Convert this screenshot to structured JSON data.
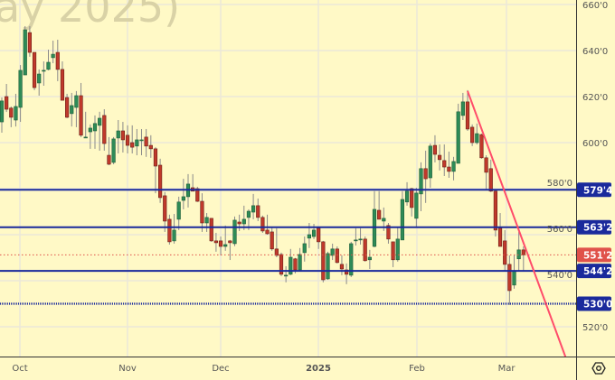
{
  "chart_data": {
    "type": "candlestick",
    "watermark": "ay 2025)",
    "ylim": [
      510,
      662
    ],
    "y_ticks": [
      "660'0",
      "640'0",
      "620'0",
      "600'0",
      "580'0",
      "560'0",
      "540'0",
      "520'0"
    ],
    "y_tick_values": [
      660,
      640,
      620,
      600,
      580,
      560,
      540,
      520
    ],
    "x_tick_labels": [
      "Oct",
      "Nov",
      "Dec",
      "2025",
      "Feb",
      "Mar"
    ],
    "grid": true,
    "colors": {
      "background": "#fff9c6",
      "up": "#2e8b57",
      "down": "#c0392b",
      "wick": "#8a8a8a",
      "level": "#1a2a9c",
      "current": "#e0524a",
      "trendline": "#ff4d6a",
      "grid": "#ece8d8"
    },
    "ohlc": [
      [
        609,
        619.6,
        604.3,
        618.1
      ],
      [
        620,
        625.5,
        613.3,
        614.5
      ],
      [
        615,
        615.7,
        606.7,
        611
      ],
      [
        609.8,
        621.2,
        607,
        615.7
      ],
      [
        615.3,
        633.7,
        609,
        631.4
      ],
      [
        629.4,
        650.6,
        629.4,
        649
      ],
      [
        647.8,
        650.6,
        637.3,
        639.2
      ],
      [
        639.2,
        639.2,
        622.8,
        623.9
      ],
      [
        625.9,
        631.8,
        620.4,
        629.8
      ],
      [
        631.4,
        635.3,
        624.7,
        631.4
      ],
      [
        631.8,
        640.4,
        631.4,
        634.9
      ],
      [
        636.9,
        644.3,
        634.5,
        638.4
      ],
      [
        639.2,
        644.7,
        626.7,
        631.8
      ],
      [
        631.8,
        635.3,
        618.4,
        618.4
      ],
      [
        619.6,
        621.2,
        610.6,
        611
      ],
      [
        612.6,
        621.6,
        607,
        616.1
      ],
      [
        615.3,
        622.4,
        606.7,
        620.4
      ],
      [
        620.4,
        625.9,
        602.4,
        603.2
      ],
      [
        602.4,
        613.4,
        602,
        602.4
      ],
      [
        604.7,
        607.9,
        597.3,
        606.3
      ],
      [
        605.1,
        611.8,
        597.3,
        608.3
      ],
      [
        607.5,
        613.4,
        596.5,
        610.6
      ],
      [
        611.8,
        614.5,
        596.5,
        599.6
      ],
      [
        594.5,
        602.4,
        590.2,
        590.6
      ],
      [
        591.4,
        602.4,
        590.6,
        601.6
      ],
      [
        602,
        609.8,
        595.3,
        605.1
      ],
      [
        605.1,
        609,
        595.7,
        601.2
      ],
      [
        603.2,
        607.5,
        595.3,
        598.8
      ],
      [
        600,
        607.5,
        595.3,
        598
      ],
      [
        598.5,
        605.9,
        594.5,
        601.2
      ],
      [
        601.2,
        605.9,
        594.5,
        601.2
      ],
      [
        602.4,
        605.9,
        593.8,
        598.5
      ],
      [
        598.8,
        603.2,
        593.4,
        597.3
      ],
      [
        597.3,
        598,
        578,
        589.8
      ],
      [
        590.2,
        593,
        573.8,
        576.1
      ],
      [
        576.9,
        578.5,
        561.2,
        565.9
      ],
      [
        566.7,
        568.7,
        555.7,
        556.9
      ],
      [
        557.3,
        569,
        556.1,
        562
      ],
      [
        566.7,
        576.5,
        562,
        574.2
      ],
      [
        574.9,
        584.3,
        571,
        576.5
      ],
      [
        576.5,
        586.3,
        571.8,
        582
      ],
      [
        580.4,
        586.3,
        578.9,
        578.9
      ],
      [
        580,
        580.8,
        574.2,
        574.5
      ],
      [
        574.5,
        578,
        561.2,
        565.1
      ],
      [
        565.1,
        569.4,
        561.2,
        567.5
      ],
      [
        567.1,
        567.1,
        556.9,
        557.3
      ],
      [
        557.3,
        560.8,
        552.6,
        556.5
      ],
      [
        557.3,
        559.2,
        551,
        554.9
      ],
      [
        554.9,
        564,
        553,
        555.7
      ],
      [
        557.3,
        557.7,
        549,
        556.5
      ],
      [
        556.1,
        567.9,
        555,
        566.3
      ],
      [
        565.5,
        568.7,
        561.6,
        564.7
      ],
      [
        564.7,
        572.6,
        562,
        566.7
      ],
      [
        567.5,
        571,
        562,
        570.2
      ],
      [
        569.8,
        577.7,
        566.7,
        572.6
      ],
      [
        572.6,
        575.7,
        565.9,
        567.5
      ],
      [
        567.5,
        568.3,
        560.8,
        561.6
      ],
      [
        562,
        568.7,
        560,
        560.4
      ],
      [
        561.2,
        563.2,
        553,
        553.8
      ],
      [
        553.8,
        562.8,
        550.2,
        551
      ],
      [
        551.4,
        552.2,
        542,
        542.8
      ],
      [
        542.4,
        546.3,
        539.3,
        542.4
      ],
      [
        542.8,
        553.8,
        542.4,
        550.2
      ],
      [
        549.5,
        549.9,
        543.2,
        544.7
      ],
      [
        544.7,
        554.2,
        544.3,
        551.4
      ],
      [
        552.2,
        559.2,
        548.3,
        556.1
      ],
      [
        558.5,
        565.1,
        554.2,
        560
      ],
      [
        559.2,
        564.7,
        558.1,
        562
      ],
      [
        562.8,
        563.2,
        553.8,
        556.9
      ],
      [
        556.9,
        557.3,
        539.3,
        540.4
      ],
      [
        540.8,
        552.6,
        540.4,
        551.8
      ],
      [
        551,
        556.1,
        549,
        553.8
      ],
      [
        553.8,
        554.9,
        547.5,
        547.9
      ],
      [
        547.1,
        551,
        542.4,
        545.1
      ],
      [
        544.7,
        547.5,
        538.5,
        542.8
      ],
      [
        542.4,
        556.9,
        541.6,
        556.1
      ],
      [
        557.7,
        562.8,
        555.3,
        557.7
      ],
      [
        558.1,
        562.8,
        555.7,
        558.1
      ],
      [
        558.1,
        559.2,
        548.3,
        548.7
      ],
      [
        549.1,
        553.4,
        545.1,
        550.2
      ],
      [
        554.9,
        578.9,
        554.5,
        571
      ],
      [
        570.6,
        578.9,
        566.7,
        566.7
      ],
      [
        565.9,
        571.8,
        561.6,
        567.1
      ],
      [
        564,
        565.1,
        556.1,
        558.1
      ],
      [
        556.9,
        556.9,
        545.9,
        549.1
      ],
      [
        549.1,
        563.2,
        548.3,
        558.1
      ],
      [
        557.7,
        578.9,
        557.7,
        575.3
      ],
      [
        574.2,
        582.8,
        572.6,
        578.9
      ],
      [
        580,
        580.4,
        567.9,
        571.8
      ],
      [
        567.1,
        580.4,
        563.2,
        578.1
      ],
      [
        577.7,
        591.4,
        570.2,
        588.7
      ],
      [
        588.7,
        596.5,
        573.8,
        584.3
      ],
      [
        584.7,
        599.6,
        580.4,
        598.5
      ],
      [
        598.8,
        603.2,
        591.4,
        594.9
      ],
      [
        594.5,
        599.2,
        587.9,
        592.6
      ],
      [
        592.2,
        599.2,
        585.5,
        589.4
      ],
      [
        589.4,
        596.1,
        584.7,
        587.5
      ],
      [
        587.5,
        593.8,
        583.6,
        591.8
      ],
      [
        591,
        616.9,
        591,
        613.4
      ],
      [
        611.8,
        621.6,
        609.8,
        617.7
      ],
      [
        617.7,
        622.8,
        605.1,
        605.9
      ],
      [
        606.7,
        607.9,
        598.5,
        600
      ],
      [
        600,
        608.3,
        599.2,
        603.9
      ],
      [
        603.5,
        603.9,
        593,
        593.4
      ],
      [
        593.4,
        594.5,
        579.6,
        587.1
      ],
      [
        588.7,
        592.6,
        578.5,
        578.9
      ],
      [
        578.9,
        579.6,
        559.2,
        562
      ],
      [
        562.8,
        569.4,
        554.9,
        554.9
      ],
      [
        557.3,
        562,
        544.3,
        547.1
      ],
      [
        547.1,
        551,
        529.5,
        535.7
      ],
      [
        538.1,
        551,
        536.5,
        544.3
      ],
      [
        549.5,
        561.2,
        544,
        553.4
      ],
      [
        553.4,
        554.9,
        544.3,
        551.25
      ]
    ],
    "levels": [
      {
        "value": 579.5,
        "label": "579'4",
        "style": "solid"
      },
      {
        "value": 563.25,
        "label": "563'2",
        "style": "solid"
      },
      {
        "value": 544.25,
        "label": "544'2",
        "style": "solid"
      },
      {
        "value": 530,
        "label": "530'0",
        "style": "dotted"
      }
    ],
    "current_price": {
      "value": 551.25,
      "label": "551'2"
    },
    "trendline": {
      "start": {
        "bar": 100,
        "price": 622.4
      },
      "end": {
        "bar": 121,
        "price": 507
      }
    }
  },
  "toolbar": {
    "settings_icon": "hexagon-settings-icon"
  }
}
